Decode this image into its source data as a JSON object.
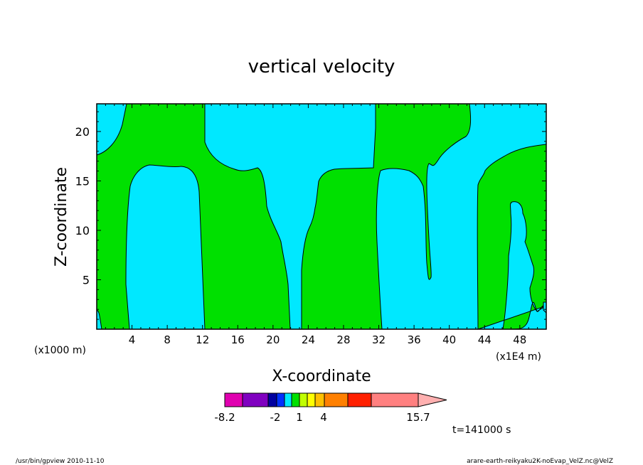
{
  "chart_data": {
    "type": "heatmap",
    "title": "vertical velocity",
    "xlabel": "X-coordinate",
    "ylabel": "Z-coordinate",
    "x_unit_left": "(x1000 m)",
    "x_unit_right": "(x1E4 m)",
    "xlim": [
      0,
      51
    ],
    "ylim": [
      0,
      22.8
    ],
    "xticks": [
      "4",
      "8",
      "12",
      "16",
      "20",
      "24",
      "28",
      "32",
      "36",
      "40",
      "44",
      "48"
    ],
    "yticks": [
      "5",
      "10",
      "15",
      "20"
    ],
    "colorbar": {
      "min_label": "-8.2",
      "max_label": "15.7",
      "labels": [
        "-8.2",
        "-2",
        "1",
        "4",
        "15.7"
      ],
      "colors": [
        "#e000b0",
        "#8000c0",
        "#0000a0",
        "#0030ff",
        "#00e8ff",
        "#00e000",
        "#c0ff00",
        "#ffff00",
        "#ffc000",
        "#ff8000",
        "#ff2000",
        "#ff8080",
        "#ffb0b0"
      ]
    },
    "time_label": "t=141000 s",
    "colors": {
      "negative": "#00e8ff",
      "positive": "#00e000"
    }
  },
  "footer": {
    "left": "/usr/bin/gpview  2010-11-10",
    "right": "arare-earth-reikyaku2K-noEvap_VelZ.nc@VelZ"
  }
}
